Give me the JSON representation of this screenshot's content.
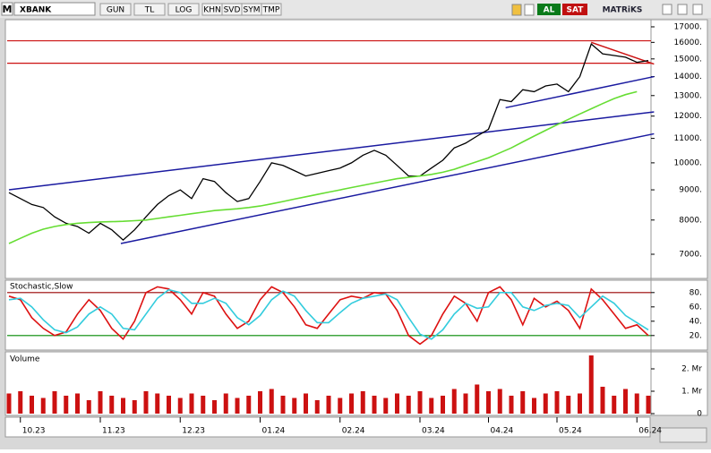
{
  "toolbar": {
    "logo": "M",
    "symbol": "XBANK",
    "buttons": [
      "GUN",
      "TL",
      "LOG",
      "KHN",
      "SVD",
      "SYM",
      "TMP"
    ],
    "buy": "AL",
    "sell": "SAT",
    "brand": "MATRiKS"
  },
  "chart_data": [
    {
      "type": "line",
      "log_scale": true,
      "ylim": [
        6370,
        17480
      ],
      "yticks": [
        {
          "value": 17000,
          "label": "17000."
        },
        {
          "value": 16000,
          "label": "16000."
        },
        {
          "value": 15000,
          "label": "15000."
        },
        {
          "value": 14000,
          "label": "14000."
        },
        {
          "value": 13000,
          "label": "13000."
        },
        {
          "value": 12000,
          "label": "12000."
        },
        {
          "value": 11000,
          "label": "11000."
        },
        {
          "value": 10000,
          "label": "10000."
        },
        {
          "value": 9000,
          "label": "9000."
        },
        {
          "value": 8000,
          "label": "8000."
        },
        {
          "value": 7000,
          "label": "7000."
        }
      ],
      "series": [
        {
          "color": "#000000",
          "values": [
            8900,
            8700,
            8500,
            8400,
            8100,
            7900,
            7800,
            7600,
            7900,
            7700,
            7400,
            7700,
            8100,
            8500,
            8800,
            9000,
            8700,
            9400,
            9300,
            8900,
            8600,
            8700,
            9300,
            10000,
            9900,
            9700,
            9500,
            9600,
            9700,
            9800,
            10000,
            10300,
            10500,
            10300,
            9900,
            9500,
            9500,
            9800,
            10100,
            10600,
            10800,
            11100,
            11400,
            12800,
            12700,
            13300,
            13200,
            13500,
            13600,
            13200,
            14000,
            15900,
            15300,
            15200,
            15100,
            14800,
            14900
          ]
        },
        {
          "color": "#66dd33",
          "values": [
            7300,
            7450,
            7600,
            7720,
            7800,
            7860,
            7900,
            7920,
            7940,
            7950,
            7960,
            7980,
            8000,
            8050,
            8100,
            8150,
            8200,
            8250,
            8300,
            8330,
            8360,
            8400,
            8450,
            8520,
            8600,
            8680,
            8760,
            8840,
            8920,
            9000,
            9080,
            9160,
            9240,
            9320,
            9400,
            9450,
            9500,
            9560,
            9640,
            9750,
            9900,
            10050,
            10200,
            10400,
            10600,
            10850,
            11100,
            11350,
            11600,
            11850,
            12100,
            12350,
            12600,
            12850,
            13050,
            13200,
            null
          ]
        }
      ],
      "trend_lines": [
        {
          "color": "#1a1aa0",
          "points": [
            [
              0,
              9000
            ],
            [
              56.5,
              12200
            ]
          ]
        },
        {
          "color": "#1a1aa0",
          "points": [
            [
              9.8,
              7300
            ],
            [
              56.5,
              11200
            ]
          ]
        },
        {
          "color": "#1a1aa0",
          "points": [
            [
              43.5,
              12400
            ],
            [
              56.5,
              14000
            ]
          ]
        },
        {
          "color": "#cc1111",
          "points": [
            [
              51,
              16000
            ],
            [
              56.5,
              14700
            ]
          ]
        }
      ],
      "hlines": {
        "color": "#cc1111",
        "values": [
          16100,
          14750
        ]
      }
    },
    {
      "type": "line",
      "title": "Stochastic,Slow",
      "ylim": [
        0,
        96
      ],
      "yticks": [
        {
          "value": 80,
          "label": "80."
        },
        {
          "value": 60,
          "label": "60."
        },
        {
          "value": 40,
          "label": "40."
        },
        {
          "value": 20,
          "label": "20."
        }
      ],
      "series": [
        {
          "color": "#dd1111",
          "values": [
            75,
            70,
            45,
            30,
            20,
            25,
            50,
            70,
            55,
            30,
            15,
            40,
            80,
            88,
            85,
            70,
            50,
            80,
            75,
            50,
            30,
            40,
            70,
            88,
            80,
            60,
            35,
            30,
            50,
            70,
            75,
            72,
            80,
            78,
            55,
            20,
            8,
            20,
            50,
            75,
            65,
            40,
            80,
            88,
            70,
            35,
            72,
            60,
            68,
            55,
            30,
            85,
            70,
            50,
            30,
            35,
            20
          ]
        },
        {
          "color": "#33ccdd",
          "values": [
            70,
            72,
            60,
            42,
            28,
            24,
            32,
            50,
            60,
            50,
            30,
            28,
            50,
            72,
            84,
            80,
            65,
            65,
            72,
            65,
            45,
            35,
            48,
            70,
            82,
            75,
            55,
            38,
            38,
            52,
            65,
            72,
            75,
            78,
            70,
            45,
            22,
            15,
            28,
            50,
            65,
            58,
            60,
            80,
            80,
            60,
            55,
            62,
            65,
            62,
            45,
            60,
            75,
            65,
            48,
            38,
            28
          ]
        }
      ],
      "hlines": [
        {
          "value": 80,
          "color": "#990000"
        },
        {
          "value": 20,
          "color": "#008800"
        }
      ]
    },
    {
      "type": "bar",
      "title": "Volume",
      "color": "#cc1111",
      "ylim": [
        0,
        2760000
      ],
      "yticks": [
        0,
        {
          "value": 1000000,
          "label": "1. Mr"
        },
        {
          "value": 2000000,
          "label": "2. Mr"
        }
      ],
      "categories": [
        null,
        "10.23",
        null,
        null,
        null,
        null,
        null,
        null,
        "11.23",
        null,
        null,
        null,
        null,
        null,
        null,
        "12.23",
        null,
        null,
        null,
        null,
        null,
        null,
        "01.24",
        null,
        null,
        null,
        null,
        null,
        null,
        "02.24",
        null,
        null,
        null,
        null,
        null,
        null,
        "03.24",
        null,
        null,
        null,
        null,
        null,
        "04.24",
        null,
        null,
        null,
        null,
        null,
        "05.24",
        null,
        null,
        null,
        null,
        null,
        null,
        "06.24",
        null
      ],
      "values": [
        900000,
        1000000,
        800000,
        700000,
        1000000,
        800000,
        900000,
        600000,
        1000000,
        800000,
        700000,
        600000,
        1000000,
        900000,
        800000,
        700000,
        900000,
        800000,
        600000,
        900000,
        700000,
        800000,
        1000000,
        1100000,
        800000,
        700000,
        900000,
        600000,
        800000,
        700000,
        900000,
        1000000,
        800000,
        700000,
        900000,
        800000,
        1000000,
        700000,
        800000,
        1100000,
        900000,
        1300000,
        1000000,
        1100000,
        800000,
        1000000,
        700000,
        900000,
        1000000,
        800000,
        900000,
        2600000,
        1200000,
        800000,
        1100000,
        900000,
        800000
      ]
    }
  ]
}
